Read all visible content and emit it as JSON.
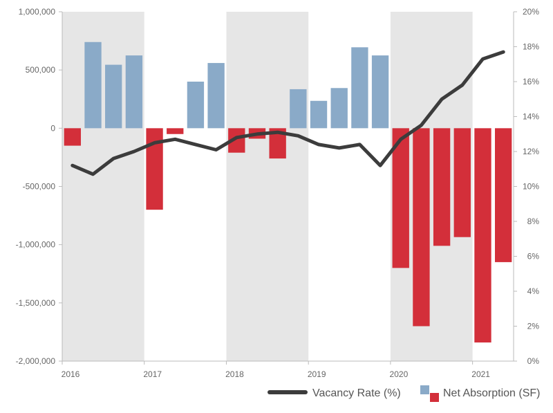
{
  "chart_data": {
    "type": "bar",
    "title": "",
    "x_tick_labels": [
      "2016",
      "2017",
      "2018",
      "2019",
      "2020",
      "2021"
    ],
    "left_axis": {
      "ylim": [
        -2000000,
        1000000
      ],
      "ticks": [
        1000000,
        500000,
        0,
        -500000,
        -1000000,
        -1500000,
        -2000000
      ],
      "tick_labels": [
        "1,000,000",
        "500,000",
        "0",
        "-500,000",
        "-1,000,000",
        "-1,500,000",
        "-2,000,000"
      ]
    },
    "right_axis": {
      "ylim": [
        0,
        20
      ],
      "ticks": [
        20,
        18,
        16,
        14,
        12,
        10,
        8,
        6,
        4,
        2,
        0
      ],
      "tick_labels": [
        "20%",
        "18%",
        "16%",
        "14%",
        "12%",
        "10%",
        "8%",
        "6%",
        "4%",
        "2%",
        "0%"
      ]
    },
    "shaded_years": [
      "2016",
      "2018",
      "2020"
    ],
    "quarters_per_year": 4,
    "series": [
      {
        "name": "Net Absorption (SF)",
        "kind": "bar",
        "axis": "left",
        "positive_color": "#8aaac8",
        "negative_color": "#d32f3a",
        "values": [
          -150000,
          740000,
          545000,
          625000,
          -700000,
          -50000,
          400000,
          560000,
          -210000,
          -90000,
          -260000,
          335000,
          235000,
          345000,
          695000,
          625000,
          -1200000,
          -1700000,
          -1010000,
          -935000,
          -1840000,
          -1150000
        ]
      },
      {
        "name": "Vacancy Rate (%)",
        "kind": "line",
        "axis": "right",
        "color": "#3c3c3c",
        "values": [
          11.2,
          10.7,
          11.6,
          12.0,
          12.5,
          12.7,
          12.4,
          12.1,
          12.8,
          13.0,
          13.1,
          12.9,
          12.4,
          12.2,
          12.4,
          11.2,
          12.7,
          13.5,
          15.0,
          15.8,
          17.3,
          17.7
        ]
      }
    ],
    "legend": {
      "placement": "bottom-right",
      "line_label": "Vacancy Rate (%)",
      "bar_label": "Net Absorption (SF)"
    },
    "colors": {
      "shade": "#e6e6e6",
      "axis": "#bbbbbb",
      "positive_bar": "#8aaac8",
      "negative_bar": "#d32f3a",
      "line": "#3c3c3c"
    }
  }
}
